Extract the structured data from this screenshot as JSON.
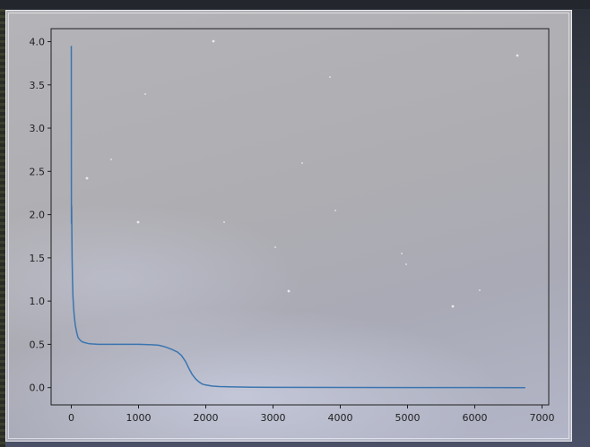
{
  "chart_data": {
    "type": "line",
    "title": "",
    "xlabel": "",
    "ylabel": "",
    "xlim": [
      -300,
      7100
    ],
    "ylim": [
      -0.2,
      4.15
    ],
    "x_ticks": [
      0,
      1000,
      2000,
      3000,
      4000,
      5000,
      6000,
      7000
    ],
    "y_ticks": [
      0.0,
      0.5,
      1.0,
      1.5,
      2.0,
      2.5,
      3.0,
      3.5,
      4.0
    ],
    "x_tick_labels": [
      "0",
      "1000",
      "2000",
      "3000",
      "4000",
      "5000",
      "6000",
      "7000"
    ],
    "y_tick_labels": [
      "0.0",
      "0.5",
      "1.0",
      "1.5",
      "2.0",
      "2.5",
      "3.0",
      "3.5",
      "4.0"
    ],
    "grid": false,
    "series": [
      {
        "color": "#3b75af",
        "x": [
          0,
          2,
          5,
          8,
          12,
          18,
          25,
          35,
          45,
          60,
          80,
          100,
          130,
          160,
          200,
          250,
          300,
          400,
          600,
          800,
          1000,
          1200,
          1300,
          1400,
          1500,
          1580,
          1640,
          1700,
          1750,
          1800,
          1850,
          1900,
          1950,
          2000,
          2100,
          2200,
          2400,
          2700,
          3000,
          4000,
          5000,
          6000,
          6750
        ],
        "y": [
          3.95,
          1.9,
          2.1,
          1.85,
          1.5,
          1.25,
          1.05,
          0.92,
          0.82,
          0.72,
          0.64,
          0.58,
          0.55,
          0.53,
          0.52,
          0.51,
          0.505,
          0.5,
          0.5,
          0.5,
          0.5,
          0.495,
          0.49,
          0.47,
          0.44,
          0.41,
          0.37,
          0.3,
          0.22,
          0.15,
          0.1,
          0.065,
          0.04,
          0.03,
          0.018,
          0.012,
          0.008,
          0.005,
          0.003,
          0.002,
          0.001,
          0.001,
          0.0
        ]
      }
    ]
  },
  "colors": {
    "line": "#3b75af",
    "axes": "#1f1f1f"
  }
}
